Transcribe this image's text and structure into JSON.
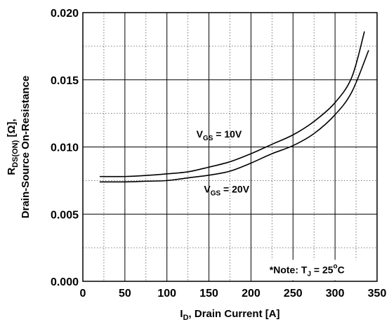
{
  "chart_data": {
    "type": "line",
    "x_axis": {
      "label_main": "I",
      "label_sub": "D",
      "label_rest": ", Drain Current [A]",
      "min": 0,
      "max": 350,
      "ticks": [
        0,
        50,
        100,
        150,
        200,
        250,
        300,
        350
      ],
      "tick_labels": [
        "0",
        "50",
        "100",
        "150",
        "200",
        "250",
        "300",
        "350"
      ],
      "minor_step": 25
    },
    "y_axis": {
      "line1_main": "R",
      "line1_sub": "DS(ON)",
      "line1_rest": " [Ω],",
      "line2": "Drain-Source On-Resistance",
      "min": 0,
      "max": 0.02,
      "ticks": [
        0,
        0.005,
        0.01,
        0.015,
        0.02
      ],
      "tick_labels": [
        "0.000",
        "0.005",
        "0.010",
        "0.015",
        "0.020"
      ],
      "minor_step": 0.0025
    },
    "grid": true,
    "series": [
      {
        "name_main": "V",
        "name_sub": "GS",
        "name_rest": " = 10V",
        "x": [
          20,
          50,
          75,
          100,
          125,
          150,
          175,
          200,
          225,
          250,
          275,
          300,
          320,
          335
        ],
        "y": [
          0.0078,
          0.0078,
          0.00788,
          0.008,
          0.00815,
          0.0085,
          0.0089,
          0.0095,
          0.0102,
          0.0109,
          0.0119,
          0.0133,
          0.0152,
          0.0186
        ]
      },
      {
        "name_main": "V",
        "name_sub": "GS",
        "name_rest": " = 20V",
        "x": [
          20,
          50,
          75,
          100,
          125,
          150,
          175,
          200,
          225,
          250,
          275,
          300,
          320,
          340
        ],
        "y": [
          0.0074,
          0.0074,
          0.00745,
          0.0075,
          0.0077,
          0.0079,
          0.0082,
          0.0088,
          0.0095,
          0.0101,
          0.011,
          0.0124,
          0.0141,
          0.0172
        ]
      }
    ],
    "note": {
      "prefix": "*Note: T",
      "sub": "J",
      "eq": " = 25",
      "sup": "o",
      "unit": "C"
    }
  }
}
